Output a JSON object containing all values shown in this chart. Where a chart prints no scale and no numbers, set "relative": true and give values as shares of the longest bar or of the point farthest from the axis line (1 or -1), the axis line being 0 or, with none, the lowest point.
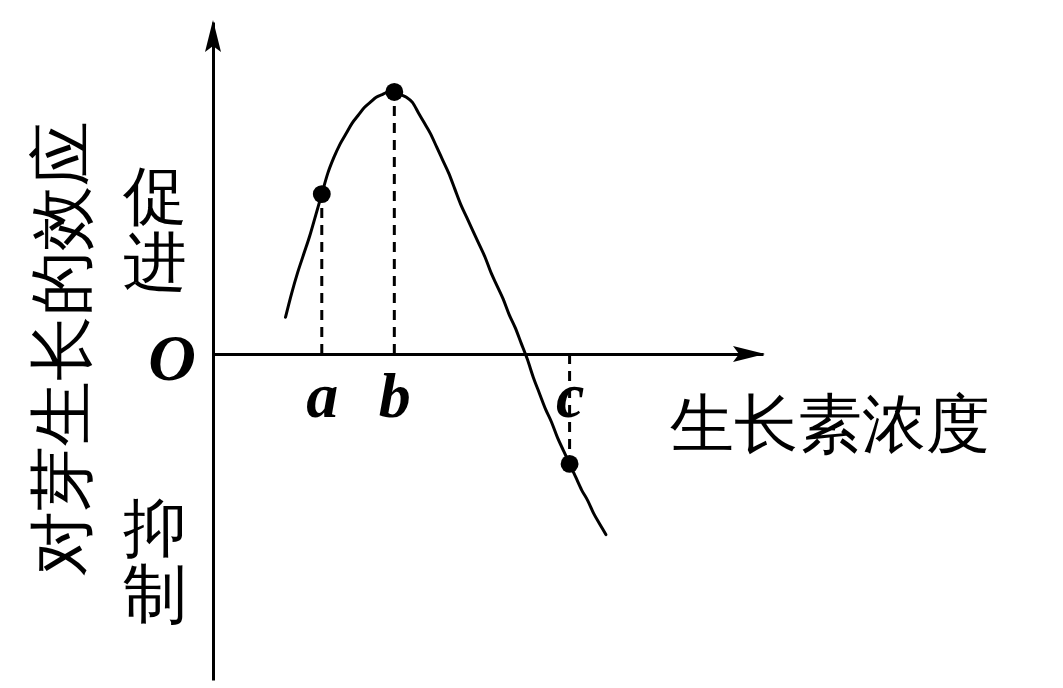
{
  "chart_data": {
    "type": "line",
    "xlabel": "生长素浓度",
    "ylabel": "对芽生长的效应",
    "relative": true,
    "annotations": [
      "促进",
      "O",
      "抑制"
    ],
    "categories": [
      null,
      null,
      null,
      null,
      null,
      null,
      null,
      null,
      null,
      null,
      null,
      null,
      null,
      null,
      null,
      null,
      null,
      null,
      "a",
      null,
      null,
      null,
      null,
      null,
      null,
      null,
      null,
      null,
      null,
      null,
      "b",
      null,
      null,
      null,
      null,
      null,
      null,
      null,
      null,
      null,
      null,
      null,
      null,
      null,
      null,
      null,
      null,
      null,
      null,
      null,
      null,
      null,
      null,
      null,
      null,
      null,
      null,
      null,
      null,
      "c",
      null,
      null,
      null,
      null,
      null,
      null,
      null,
      null,
      null,
      null,
      null,
      null,
      null,
      null,
      null,
      null,
      null,
      null,
      null,
      null,
      null,
      null,
      null,
      null,
      null,
      null,
      null,
      null,
      null,
      null,
      null,
      null
    ],
    "series": [
      {
        "color": "#000000",
        "values": [
          null,
          null,
          null,
          null,
          null,
          null,
          null,
          null,
          null,
          null,
          null,
          null,
          0.14,
          0.23,
          0.31,
          0.38,
          0.45,
          0.53,
          0.61,
          0.69,
          0.75,
          0.8,
          0.84,
          0.88,
          0.91,
          0.94,
          0.96,
          0.98,
          0.99,
          1,
          1,
          0.99,
          0.98,
          0.96,
          0.92,
          0.88,
          0.84,
          0.79,
          0.74,
          0.69,
          0.63,
          0.57,
          0.52,
          0.47,
          0.42,
          0.37,
          0.31,
          0.26,
          0.21,
          0.15,
          0.1,
          0.04,
          -0.02,
          -0.09,
          -0.15,
          -0.21,
          -0.26,
          -0.32,
          -0.37,
          -0.42,
          -0.47,
          -0.52,
          -0.56,
          -0.61,
          -0.65,
          -0.69,
          null,
          null,
          null,
          null,
          null,
          null,
          null,
          null,
          null,
          null,
          null,
          null,
          null,
          null,
          null,
          null,
          null,
          null,
          null,
          null,
          null,
          null,
          null,
          null,
          null,
          null
        ]
      },
      {
        "type": "line",
        "color": "#000000",
        "line_style": "dashed",
        "x": [
          "a",
          "a"
        ],
        "values": [
          0,
          0.61
        ]
      },
      {
        "type": "line",
        "color": "#000000",
        "line_style": "dashed",
        "x": [
          "b",
          "b"
        ],
        "values": [
          0,
          1
        ]
      },
      {
        "type": "line",
        "color": "#000000",
        "line_style": "dashed",
        "x": [
          "c",
          "c"
        ],
        "values": [
          0,
          -0.42
        ]
      },
      {
        "type": "scatter",
        "color": "#000000",
        "marker": "circle",
        "x": [
          "a",
          "b",
          "c"
        ],
        "values": [
          0.61,
          1,
          -0.42
        ]
      }
    ]
  }
}
